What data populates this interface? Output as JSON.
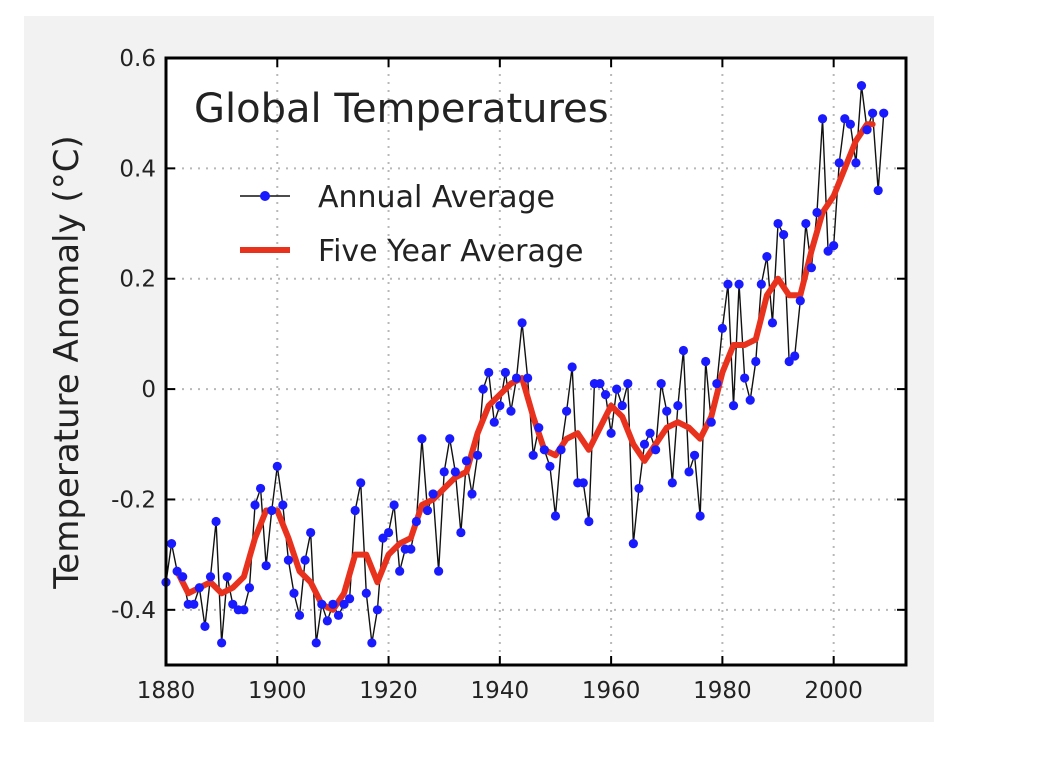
{
  "chart_data": {
    "type": "line",
    "title": "Global Temperatures",
    "xlabel": "",
    "ylabel": "Temperature Anomaly (°C)",
    "xlim": [
      1880,
      2013
    ],
    "ylim": [
      -0.5,
      0.6
    ],
    "x_ticks": [
      1880,
      1900,
      1920,
      1940,
      1960,
      1980,
      2000
    ],
    "y_ticks": [
      0.6,
      0.4,
      0.2,
      0,
      -0.2,
      -0.4
    ],
    "y_tick_labels": [
      "0.6",
      "0.4",
      "0.2",
      "0",
      "-0.2",
      "-0.4"
    ],
    "grid": true,
    "legend": [
      {
        "name": "Annual Average",
        "style": "line-with-markers",
        "color": "#111111",
        "marker_color": "#1a1aff"
      },
      {
        "name": "Five Year Average",
        "style": "thick-line",
        "color": "#e8321e"
      }
    ],
    "series": [
      {
        "name": "Annual Average",
        "x_start": 1880,
        "x_end": 2009,
        "values": [
          -0.35,
          -0.28,
          -0.33,
          -0.34,
          -0.39,
          -0.39,
          -0.36,
          -0.43,
          -0.34,
          -0.24,
          -0.46,
          -0.34,
          -0.39,
          -0.4,
          -0.4,
          -0.36,
          -0.21,
          -0.18,
          -0.32,
          -0.22,
          -0.14,
          -0.21,
          -0.31,
          -0.37,
          -0.41,
          -0.31,
          -0.26,
          -0.46,
          -0.39,
          -0.42,
          -0.39,
          -0.41,
          -0.39,
          -0.38,
          -0.22,
          -0.17,
          -0.37,
          -0.46,
          -0.4,
          -0.27,
          -0.26,
          -0.21,
          -0.33,
          -0.29,
          -0.29,
          -0.24,
          -0.09,
          -0.22,
          -0.19,
          -0.33,
          -0.15,
          -0.09,
          -0.15,
          -0.26,
          -0.13,
          -0.19,
          -0.12,
          0.0,
          0.03,
          -0.06,
          -0.03,
          0.03,
          -0.04,
          0.02,
          0.12,
          0.02,
          -0.12,
          -0.07,
          -0.11,
          -0.14,
          -0.23,
          -0.11,
          -0.04,
          0.04,
          -0.17,
          -0.17,
          -0.24,
          0.01,
          0.01,
          -0.01,
          -0.08,
          0.0,
          -0.03,
          0.01,
          -0.28,
          -0.18,
          -0.1,
          -0.08,
          -0.11,
          0.01,
          -0.04,
          -0.17,
          -0.03,
          0.07,
          -0.15,
          -0.12,
          -0.23,
          0.05,
          -0.06,
          0.01,
          0.11,
          0.19,
          -0.03,
          0.19,
          0.02,
          -0.02,
          0.05,
          0.19,
          0.24,
          0.12,
          0.3,
          0.28,
          0.05,
          0.06,
          0.16,
          0.3,
          0.22,
          0.32,
          0.49,
          0.25,
          0.26,
          0.41,
          0.49,
          0.48,
          0.41,
          0.55,
          0.47,
          0.5,
          0.36,
          0.5
        ]
      },
      {
        "name": "Five Year Average",
        "x": [
          1882,
          1884,
          1886,
          1888,
          1890,
          1892,
          1894,
          1896,
          1898,
          1900,
          1902,
          1904,
          1906,
          1908,
          1910,
          1912,
          1914,
          1916,
          1918,
          1920,
          1922,
          1924,
          1926,
          1928,
          1930,
          1932,
          1934,
          1936,
          1938,
          1940,
          1942,
          1944,
          1946,
          1948,
          1950,
          1952,
          1954,
          1956,
          1958,
          1960,
          1962,
          1964,
          1966,
          1968,
          1970,
          1972,
          1974,
          1976,
          1978,
          1980,
          1982,
          1984,
          1986,
          1988,
          1990,
          1992,
          1994,
          1996,
          1998,
          2000,
          2002,
          2004,
          2006,
          2007
        ],
        "values": [
          -0.33,
          -0.37,
          -0.36,
          -0.35,
          -0.37,
          -0.36,
          -0.34,
          -0.27,
          -0.22,
          -0.22,
          -0.27,
          -0.33,
          -0.35,
          -0.39,
          -0.4,
          -0.37,
          -0.3,
          -0.3,
          -0.35,
          -0.3,
          -0.28,
          -0.27,
          -0.21,
          -0.2,
          -0.18,
          -0.16,
          -0.15,
          -0.08,
          -0.03,
          -0.01,
          0.01,
          0.02,
          -0.05,
          -0.11,
          -0.12,
          -0.09,
          -0.08,
          -0.11,
          -0.07,
          -0.03,
          -0.05,
          -0.1,
          -0.13,
          -0.1,
          -0.07,
          -0.06,
          -0.07,
          -0.09,
          -0.05,
          0.03,
          0.08,
          0.08,
          0.09,
          0.17,
          0.2,
          0.17,
          0.17,
          0.25,
          0.32,
          0.35,
          0.4,
          0.45,
          0.48,
          0.48
        ]
      }
    ]
  }
}
